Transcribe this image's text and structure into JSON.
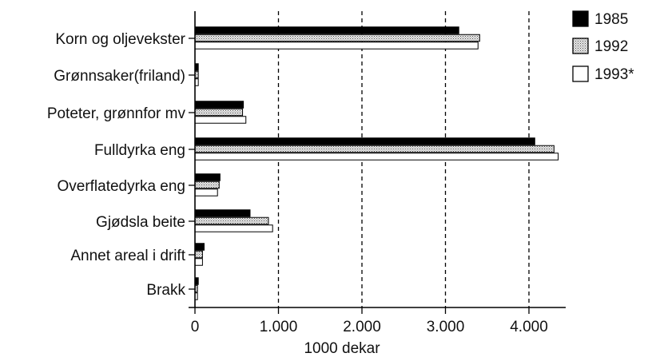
{
  "chart_data": {
    "type": "bar",
    "orientation": "horizontal",
    "categories": [
      "Korn og oljevekster",
      "Grønnsaker(friland)",
      "Poteter, grønnfor mv",
      "Fulldyrka eng",
      "Overflatedyrka eng",
      "Gjødsla beite",
      "Annet areal i drift",
      "Brakk"
    ],
    "series": [
      {
        "name": "1985",
        "fill": "black",
        "values": [
          3160,
          40,
          580,
          4070,
          300,
          660,
          110,
          40
        ]
      },
      {
        "name": "1992",
        "fill": "dotted",
        "values": [
          3410,
          40,
          570,
          4300,
          290,
          880,
          90,
          30
        ]
      },
      {
        "name": "1993*",
        "fill": "white",
        "values": [
          3390,
          40,
          610,
          4350,
          270,
          930,
          90,
          30
        ]
      }
    ],
    "xlabel": "1000 dekar",
    "xlim": [
      0,
      4500
    ],
    "xticks": [
      0,
      1000,
      2000,
      3000,
      4000
    ],
    "xtick_labels": [
      "0",
      "1.000",
      "2.000",
      "3.000",
      "4.000"
    ],
    "grid": "vertical dashed at 1.000, 2.000, 3.000, 4.000",
    "legend_position": "top-right",
    "colors": {
      "bar_stroke": "#000000",
      "black_fill": "#000000",
      "dotted_fill": "#d9d9d9",
      "white_fill": "#ffffff",
      "grid": "#000000"
    }
  }
}
